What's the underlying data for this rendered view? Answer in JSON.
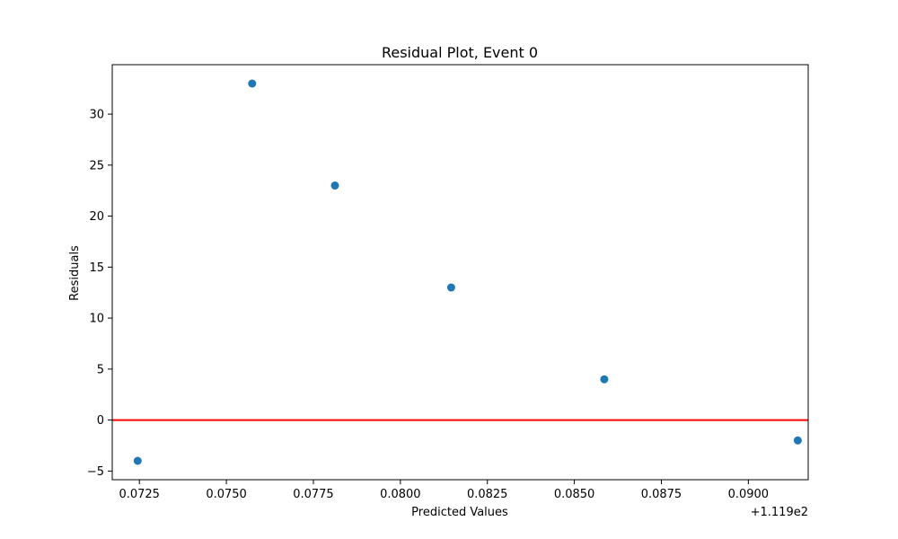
{
  "chart_data": {
    "type": "scatter",
    "title": "Residual Plot, Event 0",
    "xlabel": "Predicted Values",
    "ylabel": "Residuals",
    "x_offset_label": "+1.119e2",
    "xlim": [
      0.07172,
      0.09172
    ],
    "ylim": [
      -5.85,
      34.85
    ],
    "x_ticks": [
      0.0725,
      0.075,
      0.0775,
      0.08,
      0.0825,
      0.085,
      0.0875,
      0.09
    ],
    "x_tick_labels": [
      "0.0725",
      "0.0750",
      "0.0775",
      "0.0800",
      "0.0825",
      "0.0850",
      "0.0875",
      "0.0900"
    ],
    "y_ticks": [
      -5,
      0,
      5,
      10,
      15,
      20,
      25,
      30
    ],
    "y_tick_labels": [
      "−5",
      "0",
      "5",
      "10",
      "15",
      "20",
      "25",
      "30"
    ],
    "grid": false,
    "series": [
      {
        "x": [
          0.07245,
          0.07574,
          0.07812,
          0.08146,
          0.08586,
          0.09142
        ],
        "y": [
          -4,
          33,
          23,
          13,
          4,
          -2
        ],
        "color": "#1f77b4"
      }
    ],
    "reference_line": {
      "y": 0,
      "color": "#ff0000"
    }
  }
}
